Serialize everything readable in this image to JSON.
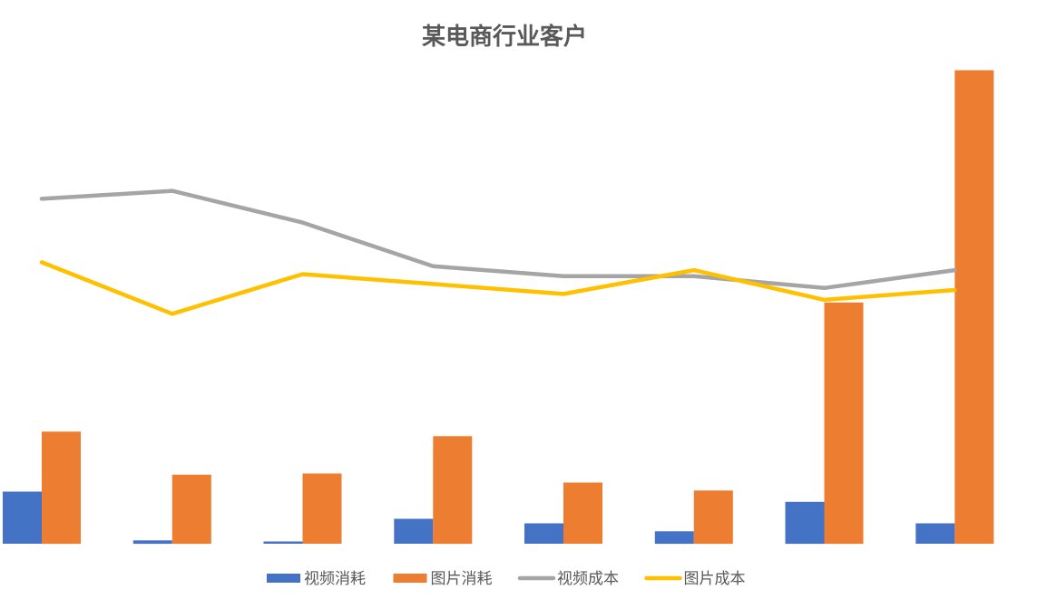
{
  "chart_data": {
    "type": "bar",
    "title": "某电商行业客户",
    "xlabel": "",
    "ylabel": "",
    "categories": [
      "",
      "",
      "",
      "",
      "",
      "",
      "",
      ""
    ],
    "bar_series": [
      {
        "name": "视频消耗",
        "color": "#4472C4",
        "values": [
          46,
          3,
          2,
          22,
          18,
          11,
          37,
          18
        ]
      },
      {
        "name": "图片消耗",
        "color": "#ED7D31",
        "values": [
          99,
          61,
          62,
          95,
          54,
          47,
          213,
          418
        ]
      }
    ],
    "line_series": [
      {
        "name": "视频成本",
        "color": "#A5A5A5",
        "values": [
          87,
          89,
          81,
          70,
          67.5,
          67.5,
          64.5,
          69
        ]
      },
      {
        "name": "图片成本",
        "color": "#FFC000",
        "values": [
          71,
          58,
          68,
          65.5,
          63,
          69,
          61.5,
          64
        ]
      }
    ],
    "bar_axis_range": [
      0,
      420
    ],
    "line_axis_range": [
      0,
      120
    ],
    "grid": false,
    "axes_visible": false,
    "legend": "bottom"
  }
}
